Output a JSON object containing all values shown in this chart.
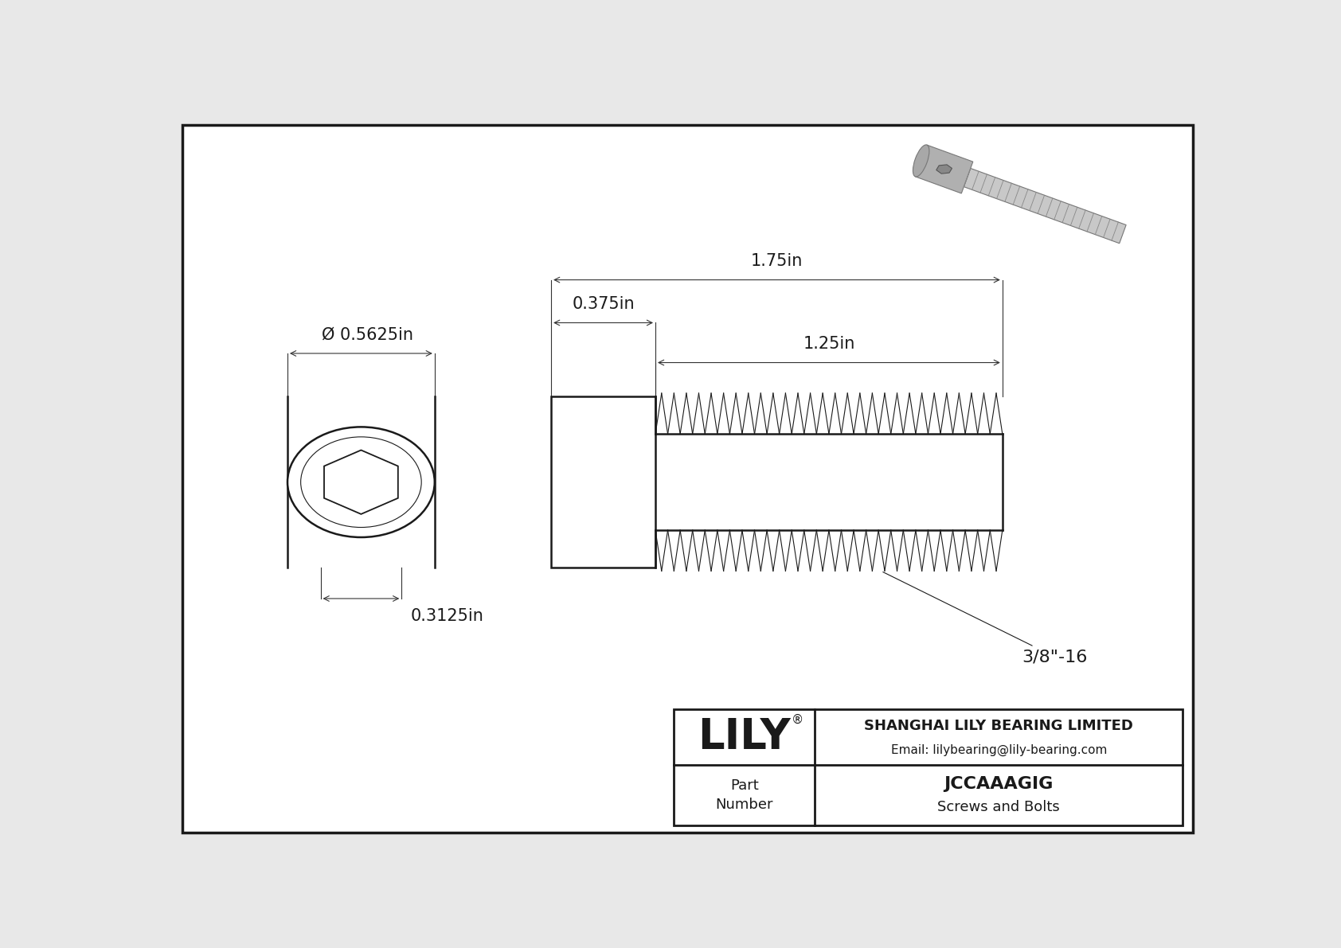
{
  "bg_color": "#e8e8e8",
  "drawing_bg": "#ffffff",
  "line_color": "#1a1a1a",
  "dim_line_color": "#333333",
  "title_text": "JCCAAAGIG",
  "subtitle_text": "Screws and Bolts",
  "company_name": "SHANGHAI LILY BEARING LIMITED",
  "company_email": "Email: lilybearing@lily-bearing.com",
  "logo_text": "LILY",
  "logo_trademark": "®",
  "part_label": "Part\nNumber",
  "dim_diameter": "Ø 0.5625in",
  "dim_width": "0.375in",
  "dim_total_length": "1.75in",
  "dim_thread_length": "1.25in",
  "dim_head_width": "0.3125in",
  "thread_label": "3/8\"-16",
  "lw": 1.3,
  "lw_thick": 1.8,
  "lw_thin": 0.8
}
